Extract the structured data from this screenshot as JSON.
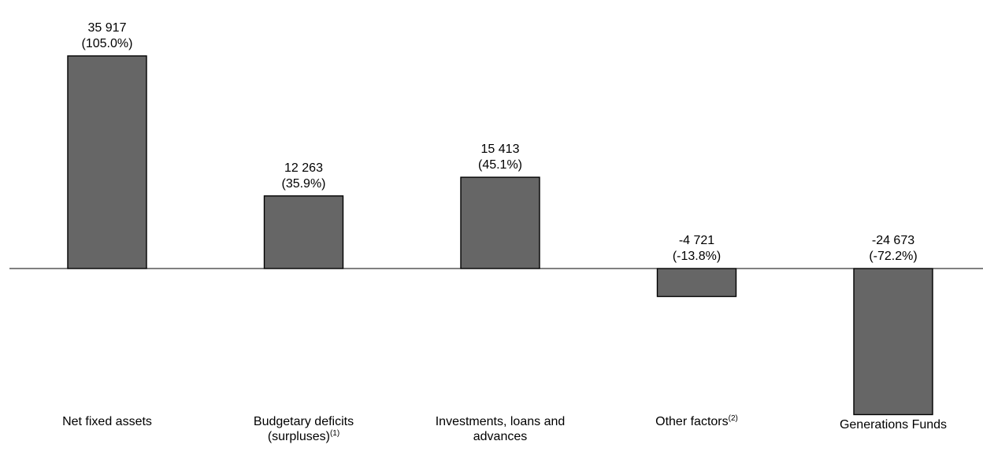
{
  "chart_data": {
    "type": "bar",
    "title": "",
    "xlabel": "",
    "ylabel": "",
    "grid": false,
    "bar_color": "#666666",
    "categories": [
      {
        "lines": [
          "Net fixed assets"
        ],
        "note": ""
      },
      {
        "lines": [
          "Budgetary deficits",
          "(surpluses)"
        ],
        "note": "(1)"
      },
      {
        "lines": [
          "Investments, loans and",
          "advances"
        ],
        "note": ""
      },
      {
        "lines": [
          "Other factors"
        ],
        "note": "(2)"
      },
      {
        "lines": [
          "Generations Funds"
        ],
        "note": ""
      }
    ],
    "values": [
      35917,
      12263,
      15413,
      -4721,
      -24673
    ],
    "value_labels": [
      "35 917",
      "12 263",
      "15 413",
      "-4 721",
      "-24 673"
    ],
    "percent_labels": [
      "(105.0%)",
      "(35.9%)",
      "(45.1%)",
      "(-13.8%)",
      "(-72.2%)"
    ],
    "ylim": [
      -25000,
      36000
    ]
  }
}
